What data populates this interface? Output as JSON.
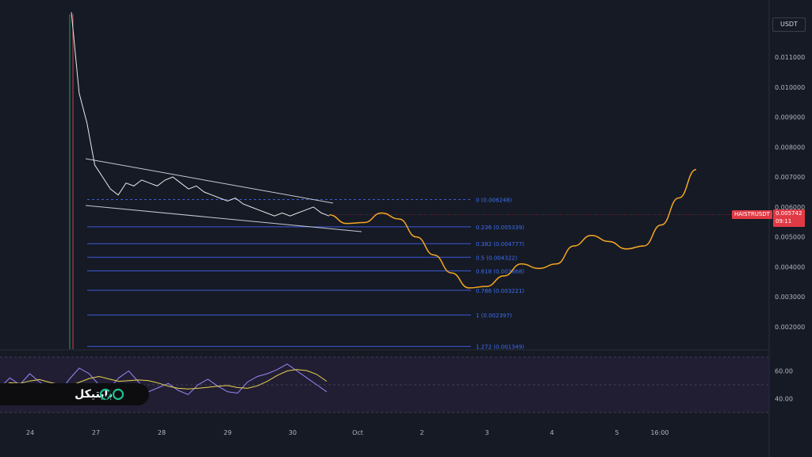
{
  "chart_data": {
    "type": "line",
    "symbol": "HAISTRUSDT",
    "currency": "USDT",
    "last_price": "0.005742",
    "countdown": "09:11",
    "y_ticks": [
      "0.011000",
      "0.010000",
      "0.009000",
      "0.008000",
      "0.007000",
      "0.006000",
      "0.005000",
      "0.004000",
      "0.003000",
      "0.002000"
    ],
    "y_tick_values": [
      0.011,
      0.01,
      0.009,
      0.008,
      0.007,
      0.006,
      0.005,
      0.004,
      0.003,
      0.002
    ],
    "x_ticks": [
      "24",
      "27",
      "28",
      "29",
      "30",
      "Oct",
      "2",
      "3",
      "4",
      "5",
      "16:00"
    ],
    "fib_levels": [
      {
        "label": "0 (0.006248)",
        "value": 0.006248
      },
      {
        "label": "0.236 (0.005339)",
        "value": 0.005339
      },
      {
        "label": "0.382 (0.004777)",
        "value": 0.004777
      },
      {
        "label": "0.5 (0.004322)",
        "value": 0.004322
      },
      {
        "label": "0.618 (0.003868)",
        "value": 0.003868
      },
      {
        "label": "0.786 (0.003221)",
        "value": 0.003221
      },
      {
        "label": "1 (0.002397)",
        "value": 0.002397
      },
      {
        "label": "1.272 (0.001349)",
        "value": 0.001349
      }
    ],
    "price_series": [
      0.0125,
      0.0098,
      0.0088,
      0.0074,
      0.007,
      0.0066,
      0.0064,
      0.0068,
      0.0067,
      0.0069,
      0.0068,
      0.0067,
      0.0069,
      0.007,
      0.0068,
      0.0066,
      0.0067,
      0.0065,
      0.0064,
      0.0063,
      0.0062,
      0.0063,
      0.0061,
      0.006,
      0.0059,
      0.0058,
      0.0057,
      0.0058,
      0.0057,
      0.0058,
      0.0059,
      0.006,
      0.0058,
      0.0057
    ],
    "projection": [
      0.00574,
      0.00545,
      0.00548,
      0.0058,
      0.0056,
      0.005,
      0.0044,
      0.0038,
      0.0033,
      0.00335,
      0.0037,
      0.0041,
      0.00395,
      0.0041,
      0.0047,
      0.00505,
      0.00485,
      0.0046,
      0.0047,
      0.0054,
      0.0063,
      0.00725
    ],
    "rsi_ticks": [
      "60.00",
      "40.00"
    ],
    "rsi_tick_values": [
      60,
      40
    ],
    "rsi_series": [
      48,
      55,
      50,
      58,
      52,
      47,
      44,
      54,
      62,
      58,
      50,
      47,
      55,
      60,
      52,
      45,
      48,
      51,
      46,
      43,
      50,
      54,
      49,
      45,
      44,
      52,
      56,
      58,
      61,
      65,
      60,
      55,
      50,
      45
    ],
    "colors": {
      "background": "#161a25",
      "price": "#e8e8e8",
      "projection": "#f5a623",
      "fib": "#3d5bd9",
      "rsi": "#9b87f5",
      "rsi_ma": "#e8d44d",
      "last_price": "#e03a45"
    }
  },
  "logo": {
    "text": "بایتیکل"
  }
}
